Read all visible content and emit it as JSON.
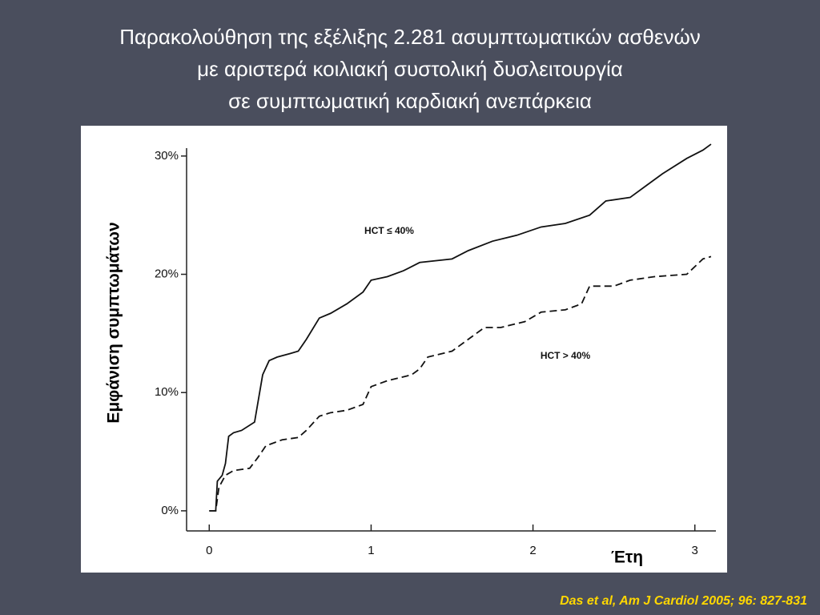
{
  "chart_data": {
    "type": "line",
    "title": [
      "Παρακολούθηση της εξέλιξης 2.281 ασυμπτωματικών ασθενών",
      "με αριστερά κοιλιακή συστολική δυσλειτουργία",
      "σε συμπτωματική καρδιακή ανεπάρκεια"
    ],
    "x_label": "Έτη",
    "y_label": "Εμφάνιση συμπτωμάτων",
    "source": "Das et al, Am J Cardiol 2005; 96: 827-831",
    "xlim": [
      -0.14,
      3.13
    ],
    "ylim": [
      -1.7,
      31.5
    ],
    "xticks": [
      0,
      1,
      2,
      3
    ],
    "yticks": [
      {
        "value": 0,
        "label": "0%"
      },
      {
        "value": 10,
        "label": "10%"
      },
      {
        "value": 20,
        "label": "20%"
      },
      {
        "value": 30,
        "label": "30%"
      }
    ],
    "series": [
      {
        "name": "HCT ≤ 40%",
        "color": "#111111",
        "dash": false,
        "x": [
          0,
          0.04,
          0.05,
          0.08,
          0.1,
          0.12,
          0.15,
          0.2,
          0.28,
          0.33,
          0.37,
          0.42,
          0.5,
          0.55,
          0.6,
          0.68,
          0.75,
          0.85,
          0.95,
          1.0,
          1.1,
          1.2,
          1.3,
          1.5,
          1.6,
          1.75,
          1.9,
          2.05,
          2.2,
          2.35,
          2.45,
          2.6,
          2.7,
          2.8,
          2.95,
          3.05,
          3.1
        ],
        "values": [
          0,
          0,
          2.5,
          3,
          4,
          6.3,
          6.6,
          6.8,
          7.5,
          11.5,
          12.7,
          13,
          13.3,
          13.5,
          14.5,
          16.3,
          16.7,
          17.5,
          18.5,
          19.5,
          19.8,
          20.3,
          21,
          21.3,
          22,
          22.8,
          23.3,
          24,
          24.3,
          25,
          26.2,
          26.5,
          27.5,
          28.5,
          29.8,
          30.5,
          31
        ]
      },
      {
        "name": "HCT > 40%",
        "color": "#111111",
        "dash": true,
        "x": [
          0,
          0.04,
          0.06,
          0.1,
          0.15,
          0.25,
          0.3,
          0.35,
          0.45,
          0.55,
          0.6,
          0.68,
          0.75,
          0.85,
          0.95,
          1.0,
          1.1,
          1.25,
          1.3,
          1.35,
          1.5,
          1.6,
          1.7,
          1.8,
          1.95,
          2.05,
          2.2,
          2.3,
          2.35,
          2.5,
          2.6,
          2.75,
          2.95,
          3.05,
          3.1
        ],
        "values": [
          0,
          0,
          2,
          3,
          3.4,
          3.6,
          4.5,
          5.5,
          6,
          6.2,
          6.8,
          8,
          8.3,
          8.5,
          9,
          10.5,
          11,
          11.5,
          12,
          13,
          13.5,
          14.5,
          15.5,
          15.5,
          16,
          16.8,
          17,
          17.5,
          19,
          19,
          19.5,
          19.8,
          20,
          21.3,
          21.5
        ]
      }
    ]
  }
}
